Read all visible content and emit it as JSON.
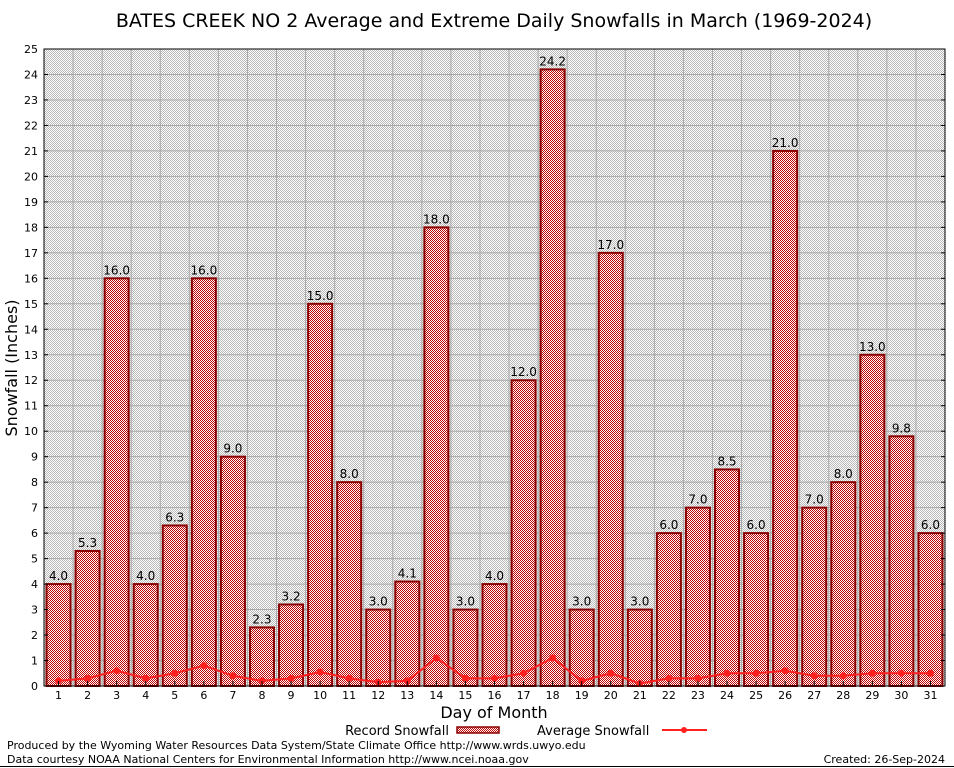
{
  "chart_data": {
    "type": "bar",
    "title": "BATES CREEK NO 2 Average and Extreme Daily Snowfalls in March (1969-2024)",
    "xlabel": "Day of Month",
    "ylabel": "Snowfall (Inches)",
    "ylim": [
      0,
      25
    ],
    "grid": true,
    "legend_placement": "bottom",
    "categories": [
      "1",
      "2",
      "3",
      "4",
      "5",
      "6",
      "7",
      "8",
      "9",
      "10",
      "11",
      "12",
      "13",
      "14",
      "15",
      "16",
      "17",
      "18",
      "19",
      "20",
      "21",
      "22",
      "23",
      "24",
      "25",
      "26",
      "27",
      "28",
      "29",
      "30",
      "31"
    ],
    "series": [
      {
        "name": "Record Snowfall",
        "type": "bar",
        "color": "#8b0000",
        "values": [
          4.0,
          5.3,
          16.0,
          4.0,
          6.3,
          16.0,
          9.0,
          2.3,
          3.2,
          15.0,
          8.0,
          3.0,
          4.1,
          18.0,
          3.0,
          4.0,
          12.0,
          24.2,
          3.0,
          17.0,
          3.0,
          6.0,
          7.0,
          8.5,
          6.0,
          21.0,
          7.0,
          8.0,
          13.0,
          9.8,
          6.0
        ]
      },
      {
        "name": "Average Snowfall",
        "type": "line",
        "color": "#ff2020",
        "values": [
          0.2,
          0.3,
          0.6,
          0.3,
          0.5,
          0.8,
          0.4,
          0.2,
          0.3,
          0.55,
          0.3,
          0.15,
          0.2,
          1.1,
          0.3,
          0.3,
          0.5,
          1.1,
          0.2,
          0.5,
          0.1,
          0.3,
          0.3,
          0.5,
          0.5,
          0.6,
          0.4,
          0.4,
          0.5,
          0.5,
          0.5
        ]
      }
    ]
  },
  "footer": {
    "line1": "Produced by the Wyoming Water Resources Data System/State Climate Office http://www.wrds.uwyo.edu",
    "line2": "Data courtesy NOAA National Centers for Environmental Information http://www.ncei.noaa.gov",
    "created": "Created: 26-Sep-2024"
  }
}
